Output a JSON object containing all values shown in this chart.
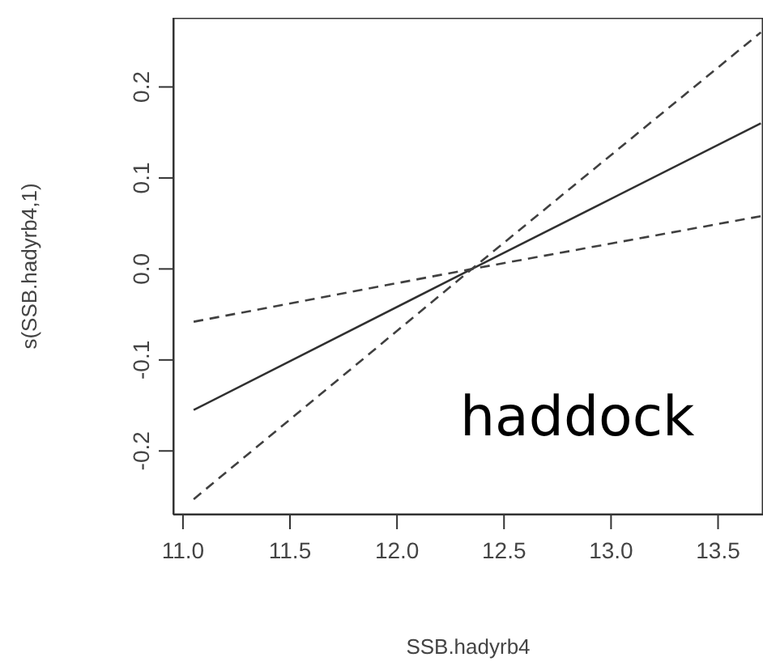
{
  "chart_data": {
    "type": "line",
    "xlabel": "SSB.hadyrb4",
    "ylabel": "s(SSB.hadyrb4,1)",
    "annotations": [
      "haddock"
    ],
    "xlim": [
      10.955,
      13.71
    ],
    "xticks": [
      {
        "value": 11,
        "label": "11.0"
      },
      11.5,
      {
        "value": 12,
        "label": "12.0"
      },
      12.5,
      {
        "value": 13,
        "label": "13.0"
      },
      13.5
    ],
    "ylim": [
      -0.27,
      0.276
    ],
    "yticks": [
      {
        "value": -0.2,
        "label": "-0.2"
      },
      {
        "value": -0.1,
        "label": "-0.1"
      },
      {
        "value": 0,
        "label": "0.0"
      },
      {
        "value": 0.1,
        "label": "0.1"
      },
      {
        "value": 0.2,
        "label": "0.2"
      }
    ],
    "grid": false,
    "marker": "none",
    "series": [
      {
        "color": "#303030",
        "line_style": "solid",
        "x": [
          11.05,
          12.35,
          13.7
        ],
        "values": [
          -0.155,
          0,
          0.16
        ]
      },
      {
        "color": "#404040",
        "line_style": "dashed",
        "x": [
          11.05,
          12.35,
          13.7
        ],
        "values": [
          -0.058,
          0,
          0.058
        ]
      },
      {
        "color": "#404040",
        "line_style": "dashed",
        "x": [
          11.05,
          12.35,
          13.7
        ],
        "values": [
          -0.253,
          0,
          0.26
        ]
      }
    ]
  }
}
